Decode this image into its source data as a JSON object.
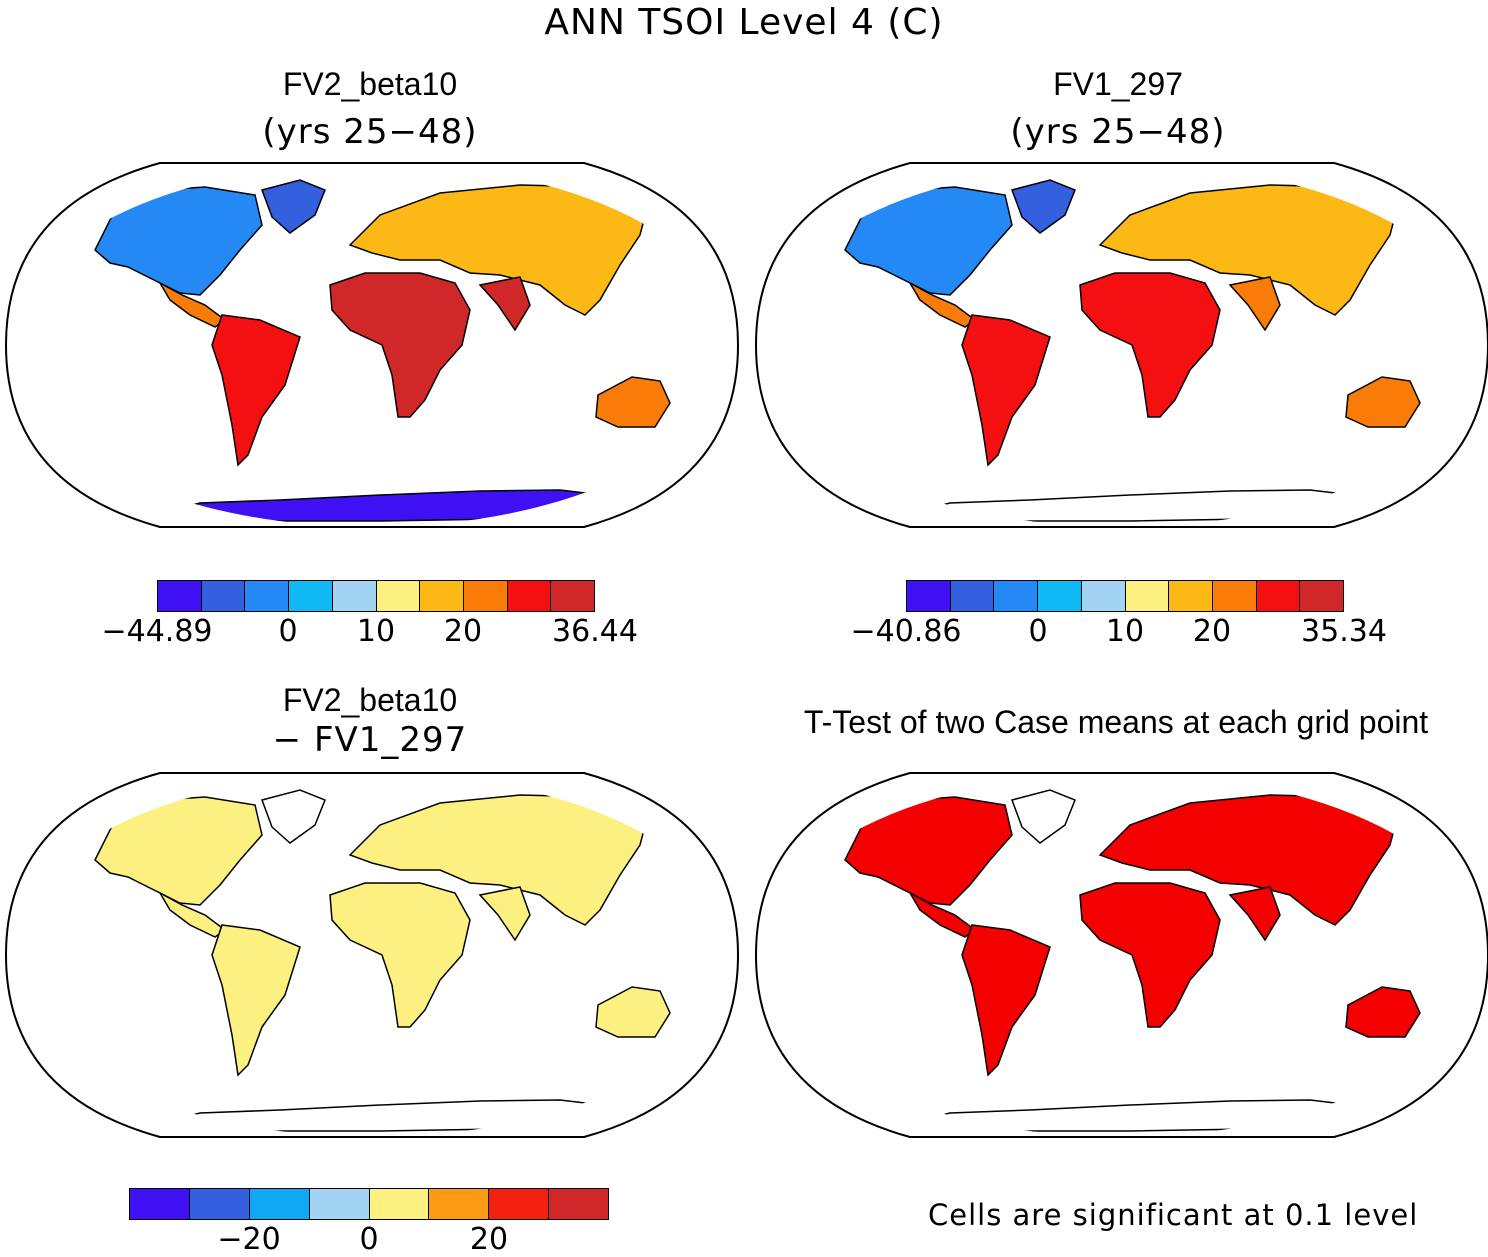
{
  "title": "ANN TSOI Level 4 (C)",
  "palette": {
    "abs": [
      "#4010f5",
      "#3460e0",
      "#2488f5",
      "#10b8f5",
      "#a0d4f0",
      "#fcf080",
      "#fcb814",
      "#fa7c08",
      "#f41010",
      "#d02828"
    ],
    "diff": [
      "#4010f5",
      "#3460e0",
      "#10a8f5",
      "#a0d4f0",
      "#fcf080",
      "#fc9a14",
      "#f42010",
      "#d02828"
    ],
    "sig": "#f40000"
  },
  "panels": [
    {
      "title": "FV2_beta10",
      "subtitle": "(yrs 25−48)",
      "ticks": [
        "−44.89",
        "0",
        "10",
        "20",
        "36.44"
      ]
    },
    {
      "title": "FV1_297",
      "subtitle": "(yrs 25−48)",
      "ticks": [
        "−40.86",
        "0",
        "10",
        "20",
        "35.34"
      ]
    },
    {
      "title": "FV2_beta10",
      "subtitle": "− FV1_297",
      "ticks": [
        "−20",
        "0",
        "20"
      ]
    },
    {
      "title": "T-Test of two Case means at each grid point",
      "footer": "Cells are significant at 0.1 level"
    }
  ]
}
